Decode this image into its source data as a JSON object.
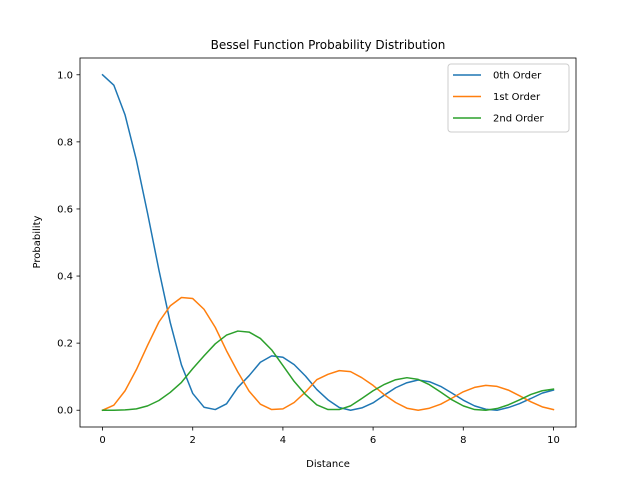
{
  "chart_data": {
    "type": "line",
    "title": "Bessel Function Probability Distribution",
    "xlabel": "Distance",
    "ylabel": "Probability",
    "xlim": [
      -0.5,
      10.5
    ],
    "ylim": [
      -0.05,
      1.05
    ],
    "xticks": [
      0,
      2,
      4,
      6,
      8,
      10
    ],
    "xtick_labels": [
      "0",
      "2",
      "4",
      "6",
      "8",
      "10"
    ],
    "yticks": [
      0.0,
      0.2,
      0.4,
      0.6,
      0.8,
      1.0
    ],
    "ytick_labels": [
      "0.0",
      "0.2",
      "0.4",
      "0.6",
      "0.8",
      "1.0"
    ],
    "grid": false,
    "legend_position": "top-right",
    "x": [
      0,
      0.25,
      0.5,
      0.75,
      1.0,
      1.25,
      1.5,
      1.75,
      2.0,
      2.25,
      2.5,
      2.75,
      3.0,
      3.25,
      3.5,
      3.75,
      4.0,
      4.25,
      4.5,
      4.75,
      5.0,
      5.25,
      5.5,
      5.75,
      6.0,
      6.25,
      6.5,
      6.75,
      7.0,
      7.25,
      7.5,
      7.75,
      8.0,
      8.25,
      8.5,
      8.75,
      9.0,
      9.25,
      9.5,
      9.75,
      10.0
    ],
    "series": [
      {
        "name": "0th Order",
        "color": "#1f77b4",
        "values": [
          1.0,
          0.969,
          0.88,
          0.746,
          0.586,
          0.418,
          0.262,
          0.135,
          0.05,
          0.009,
          0.002,
          0.019,
          0.068,
          0.103,
          0.143,
          0.162,
          0.158,
          0.136,
          0.102,
          0.062,
          0.031,
          0.008,
          0.0,
          0.007,
          0.022,
          0.045,
          0.067,
          0.082,
          0.09,
          0.085,
          0.071,
          0.051,
          0.03,
          0.013,
          0.003,
          0.0,
          0.008,
          0.02,
          0.035,
          0.051,
          0.06
        ]
      },
      {
        "name": "1st Order",
        "color": "#ff7f0e",
        "values": [
          0.0,
          0.015,
          0.058,
          0.121,
          0.194,
          0.263,
          0.311,
          0.336,
          0.333,
          0.301,
          0.247,
          0.177,
          0.114,
          0.057,
          0.018,
          0.002,
          0.004,
          0.023,
          0.054,
          0.091,
          0.107,
          0.118,
          0.115,
          0.097,
          0.074,
          0.046,
          0.023,
          0.006,
          0.0,
          0.006,
          0.018,
          0.036,
          0.055,
          0.068,
          0.074,
          0.071,
          0.06,
          0.043,
          0.025,
          0.01,
          0.002
        ]
      },
      {
        "name": "2nd Order",
        "color": "#2ca02c",
        "values": [
          0.0,
          0.0,
          0.001,
          0.004,
          0.013,
          0.029,
          0.053,
          0.083,
          0.124,
          0.162,
          0.198,
          0.224,
          0.236,
          0.233,
          0.214,
          0.18,
          0.133,
          0.086,
          0.047,
          0.016,
          0.002,
          0.002,
          0.013,
          0.035,
          0.058,
          0.077,
          0.091,
          0.097,
          0.092,
          0.076,
          0.054,
          0.031,
          0.013,
          0.002,
          0.0,
          0.005,
          0.016,
          0.031,
          0.047,
          0.058,
          0.063
        ]
      }
    ]
  }
}
